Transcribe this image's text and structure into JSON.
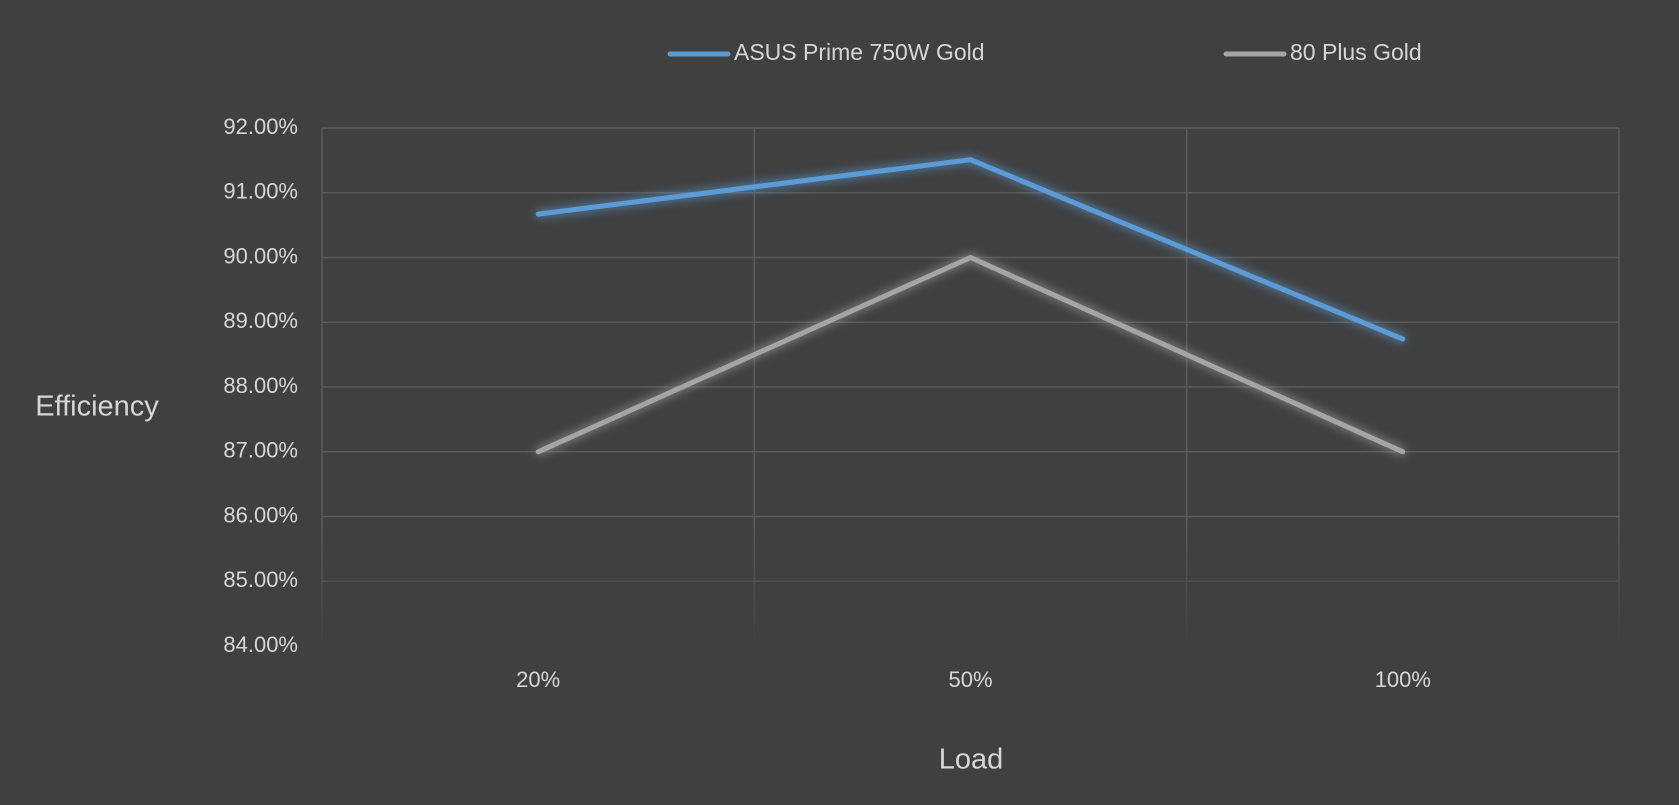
{
  "chart_data": {
    "type": "line",
    "title": "",
    "xlabel": "Load",
    "ylabel": "Efficiency",
    "categories": [
      "20%",
      "50%",
      "100%"
    ],
    "ylim": [
      84,
      92
    ],
    "ytick_step": 1,
    "ytick_labels": [
      "84.00%",
      "85.00%",
      "86.00%",
      "87.00%",
      "88.00%",
      "89.00%",
      "90.00%",
      "91.00%",
      "92.00%"
    ],
    "grid": true,
    "legend_position": "top",
    "background_color": "#404040",
    "gridline_color": "#5a5a5a",
    "text_color": "#d6d6d6",
    "series": [
      {
        "name": "ASUS Prime 750W Gold",
        "values": [
          90.67,
          91.51,
          88.74
        ],
        "color": "#5b9bd5"
      },
      {
        "name": "80 Plus Gold",
        "values": [
          87.0,
          90.0,
          87.0
        ],
        "color": "#a5a5a5"
      }
    ]
  }
}
